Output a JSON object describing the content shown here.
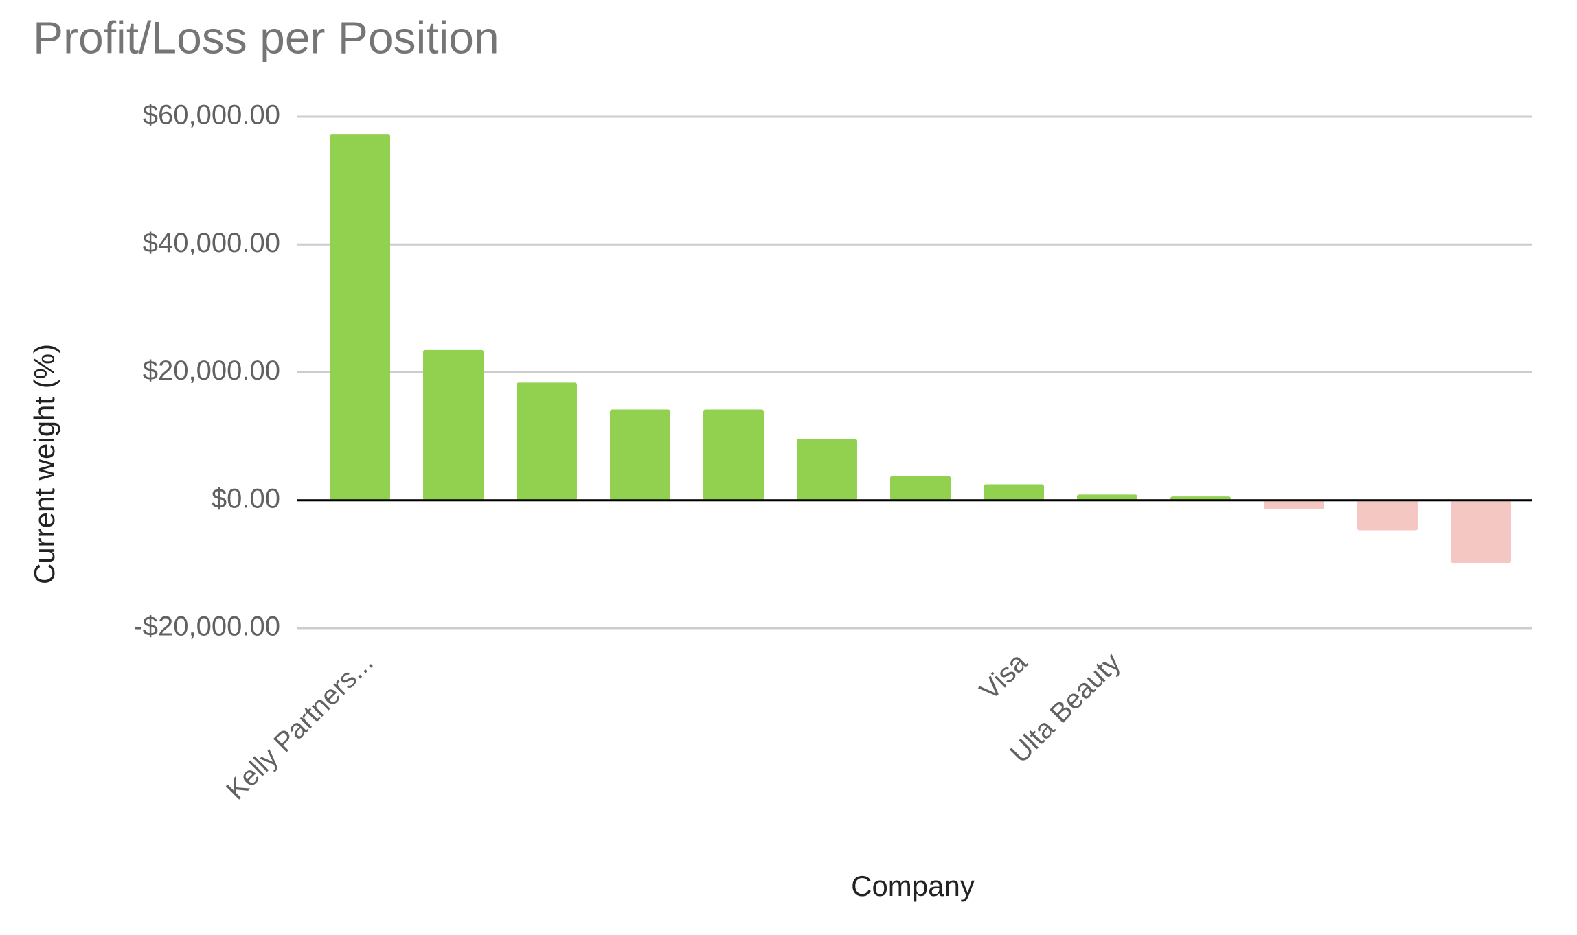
{
  "chart_data": {
    "type": "bar",
    "title": "Profit/Loss per Position",
    "x_label": "Company",
    "y_label": "Current weight (%)",
    "categories": [
      "Kelly Partners...",
      null,
      null,
      null,
      null,
      null,
      null,
      "Visa",
      "Ulta Beauty",
      null,
      null,
      null,
      null
    ],
    "values": [
      57300,
      23500,
      18400,
      14200,
      14200,
      9600,
      3800,
      2500,
      900,
      600,
      -1400,
      -4700,
      -9800
    ],
    "color": "#92d050",
    "negative_color": "#f4c7c3",
    "ylim": [
      -20000,
      60000
    ],
    "yticks": [
      {
        "value": -20000,
        "label": "-$20,000.00"
      },
      {
        "value": 0,
        "label": "$0.00"
      },
      {
        "value": 20000,
        "label": "$20,000.00"
      },
      {
        "value": 40000,
        "label": "$40,000.00"
      },
      {
        "value": 60000,
        "label": "$60,000.00"
      }
    ],
    "grid": true
  }
}
